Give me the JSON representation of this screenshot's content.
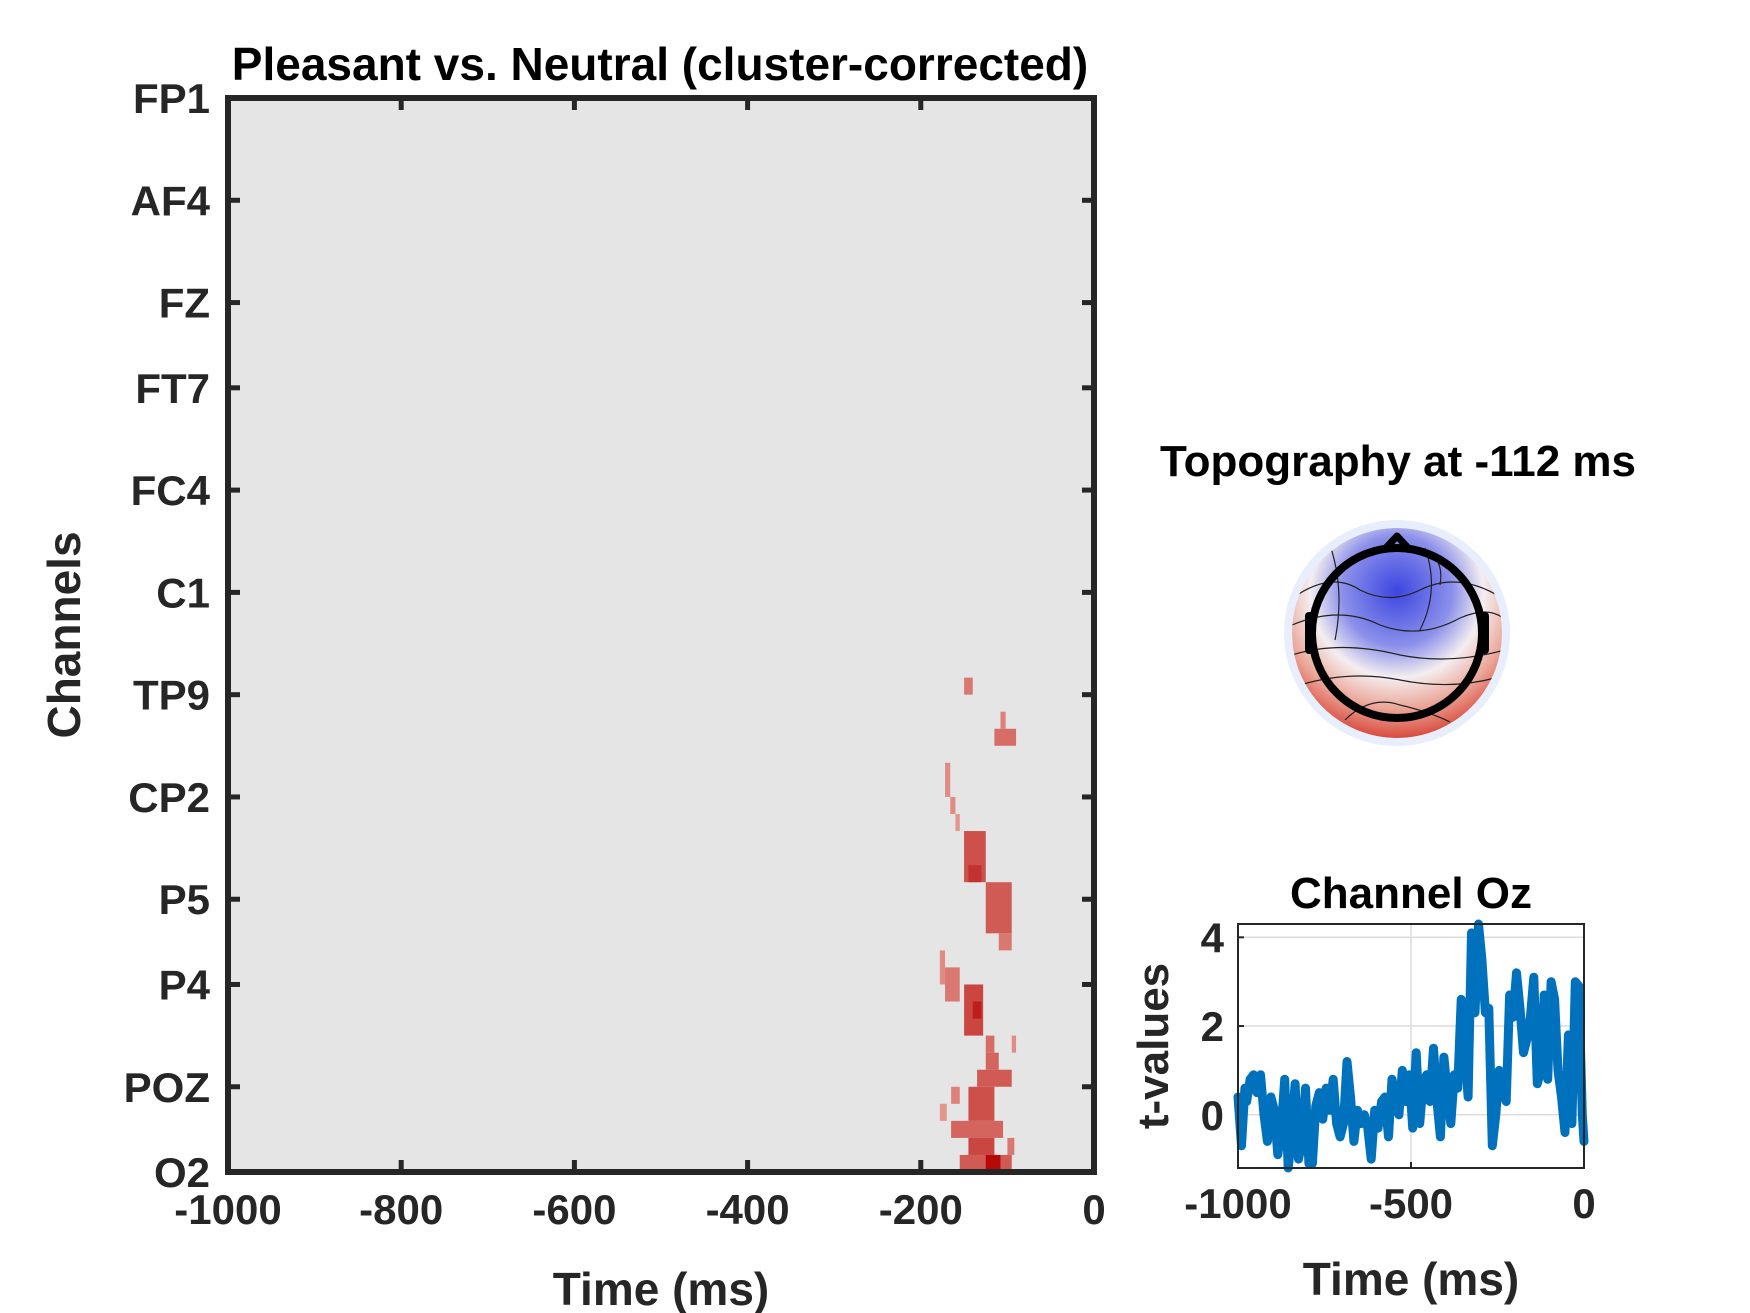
{
  "chart_data": [
    {
      "type": "heatmap",
      "title": "Pleasant vs. Neutral (cluster-corrected)",
      "xlabel": "Time (ms)",
      "ylabel": "Channels",
      "xlim": [
        -1000,
        0
      ],
      "xticks": [
        -1000,
        -800,
        -600,
        -400,
        -200,
        0
      ],
      "xtick_labels": [
        "-1000",
        "-800",
        "-600",
        "-400",
        "-200",
        "0"
      ],
      "channel_range": [
        1,
        64
      ],
      "yticks": [
        {
          "channel": 1,
          "label": "FP1"
        },
        {
          "channel": 7,
          "label": "AF4"
        },
        {
          "channel": 13,
          "label": "FZ"
        },
        {
          "channel": 18,
          "label": "FT7"
        },
        {
          "channel": 24,
          "label": "FC4"
        },
        {
          "channel": 30,
          "label": "C1"
        },
        {
          "channel": 36,
          "label": "TP9"
        },
        {
          "channel": 42,
          "label": "CP2"
        },
        {
          "channel": 48,
          "label": "P5"
        },
        {
          "channel": 53,
          "label": "P4"
        },
        {
          "channel": 59,
          "label": "POZ"
        },
        {
          "channel": 64,
          "label": "O2"
        }
      ],
      "background_color": "#e5e5e5",
      "colors": {
        "low": "#f3c8bb",
        "high": "#b30000"
      },
      "significant_cells": [
        {
          "t0": -150,
          "t1": -140,
          "c0": 35,
          "c1": 36,
          "v": 0.4
        },
        {
          "t0": -108,
          "t1": -102,
          "c0": 37,
          "c1": 38,
          "v": 0.35
        },
        {
          "t0": -115,
          "t1": -90,
          "c0": 38,
          "c1": 39,
          "v": 0.45
        },
        {
          "t0": -172,
          "t1": -166,
          "c0": 40,
          "c1": 42,
          "v": 0.3
        },
        {
          "t0": -166,
          "t1": -160,
          "c0": 42,
          "c1": 43,
          "v": 0.3
        },
        {
          "t0": -160,
          "t1": -155,
          "c0": 43,
          "c1": 44,
          "v": 0.25
        },
        {
          "t0": -150,
          "t1": -125,
          "c0": 44,
          "c1": 47,
          "v": 0.6
        },
        {
          "t0": -145,
          "t1": -130,
          "c0": 46,
          "c1": 47,
          "v": 0.75
        },
        {
          "t0": -125,
          "t1": -95,
          "c0": 47,
          "c1": 50,
          "v": 0.55
        },
        {
          "t0": -110,
          "t1": -95,
          "c0": 50,
          "c1": 51,
          "v": 0.4
        },
        {
          "t0": -178,
          "t1": -172,
          "c0": 51,
          "c1": 53,
          "v": 0.3
        },
        {
          "t0": -172,
          "t1": -155,
          "c0": 52,
          "c1": 54,
          "v": 0.4
        },
        {
          "t0": -150,
          "t1": -128,
          "c0": 53,
          "c1": 56,
          "v": 0.65
        },
        {
          "t0": -140,
          "t1": -130,
          "c0": 54,
          "c1": 55,
          "v": 0.85
        },
        {
          "t0": -125,
          "t1": -115,
          "c0": 56,
          "c1": 57,
          "v": 0.45
        },
        {
          "t0": -95,
          "t1": -90,
          "c0": 56,
          "c1": 57,
          "v": 0.3
        },
        {
          "t0": -125,
          "t1": -110,
          "c0": 57,
          "c1": 58,
          "v": 0.5
        },
        {
          "t0": -135,
          "t1": -95,
          "c0": 58,
          "c1": 59,
          "v": 0.55
        },
        {
          "t0": -165,
          "t1": -155,
          "c0": 59,
          "c1": 60,
          "v": 0.35
        },
        {
          "t0": -145,
          "t1": -115,
          "c0": 59,
          "c1": 61,
          "v": 0.6
        },
        {
          "t0": -178,
          "t1": -170,
          "c0": 60,
          "c1": 61,
          "v": 0.25
        },
        {
          "t0": -165,
          "t1": -105,
          "c0": 61,
          "c1": 62,
          "v": 0.5
        },
        {
          "t0": -145,
          "t1": -115,
          "c0": 62,
          "c1": 63,
          "v": 0.65
        },
        {
          "t0": -100,
          "t1": -92,
          "c0": 62,
          "c1": 63,
          "v": 0.4
        },
        {
          "t0": -155,
          "t1": -95,
          "c0": 63,
          "c1": 65,
          "v": 0.55
        },
        {
          "t0": -125,
          "t1": -108,
          "c0": 63,
          "c1": 65,
          "v": 0.95
        }
      ]
    },
    {
      "type": "topography",
      "title": "Topography at -112 ms",
      "colors": {
        "negative": "#3c46e0",
        "positive": "#d22a1e"
      }
    },
    {
      "type": "line",
      "title": "Channel Oz",
      "xlabel": "Time (ms)",
      "ylabel": "t-values",
      "xlim": [
        -1000,
        0
      ],
      "ylim": [
        -1.2,
        4.3
      ],
      "xticks": [
        -1000,
        -500,
        0
      ],
      "xtick_labels": [
        "-1000",
        "-500",
        "0"
      ],
      "yticks": [
        0,
        2,
        4
      ],
      "ytick_labels": [
        "0",
        "2",
        "4"
      ],
      "grid": true,
      "series_color": "#0072bd",
      "x": [
        -1000,
        -990,
        -980,
        -975,
        -965,
        -955,
        -945,
        -935,
        -925,
        -915,
        -905,
        -895,
        -885,
        -875,
        -865,
        -855,
        -845,
        -835,
        -825,
        -815,
        -805,
        -795,
        -785,
        -775,
        -765,
        -755,
        -745,
        -735,
        -725,
        -715,
        -705,
        -695,
        -685,
        -675,
        -665,
        -655,
        -645,
        -635,
        -625,
        -615,
        -605,
        -595,
        -585,
        -575,
        -565,
        -555,
        -545,
        -535,
        -525,
        -515,
        -505,
        -495,
        -485,
        -475,
        -465,
        -455,
        -445,
        -435,
        -425,
        -415,
        -405,
        -395,
        -385,
        -375,
        -365,
        -355,
        -345,
        -335,
        -325,
        -315,
        -305,
        -295,
        -285,
        -275,
        -265,
        -255,
        -245,
        -235,
        -225,
        -215,
        -205,
        -195,
        -185,
        -175,
        -165,
        -155,
        -145,
        -135,
        -125,
        -115,
        -105,
        -95,
        -85,
        -75,
        -65,
        -55,
        -45,
        -35,
        -25,
        -15,
        -5,
        0
      ],
      "y": [
        0.4,
        -0.7,
        0.6,
        0.3,
        0.8,
        0.9,
        0.5,
        0.9,
        0.0,
        -0.6,
        0.4,
        0.1,
        -0.9,
        -0.3,
        0.8,
        -1.2,
        -0.5,
        0.7,
        -1.0,
        -0.6,
        0.6,
        -1.1,
        -1.1,
        0.2,
        0.5,
        -0.1,
        0.6,
        0.1,
        0.8,
        -0.2,
        -0.5,
        -0.2,
        1.2,
        0.4,
        -0.6,
        0.1,
        -0.2,
        0.0,
        -0.3,
        -1.0,
        0.1,
        -0.3,
        0.3,
        0.4,
        -0.5,
        0.8,
        0.4,
        0.0,
        1.0,
        0.3,
        0.9,
        -0.3,
        1.4,
        -0.2,
        0.7,
        0.9,
        0.3,
        1.5,
        0.3,
        -0.5,
        1.3,
        0.5,
        -0.2,
        0.9,
        0.6,
        2.6,
        1.5,
        0.4,
        4.1,
        2.3,
        4.3,
        3.5,
        2.3,
        2.4,
        -0.7,
        0.0,
        1.0,
        0.5,
        0.3,
        2.7,
        2.2,
        3.2,
        2.4,
        1.4,
        1.7,
        2.2,
        3.1,
        0.7,
        1.0,
        2.7,
        0.8,
        3.0,
        2.6,
        1.0,
        0.4,
        -0.4,
        1.8,
        -0.2,
        3.0,
        2.9,
        0.0,
        -0.6
      ]
    }
  ]
}
